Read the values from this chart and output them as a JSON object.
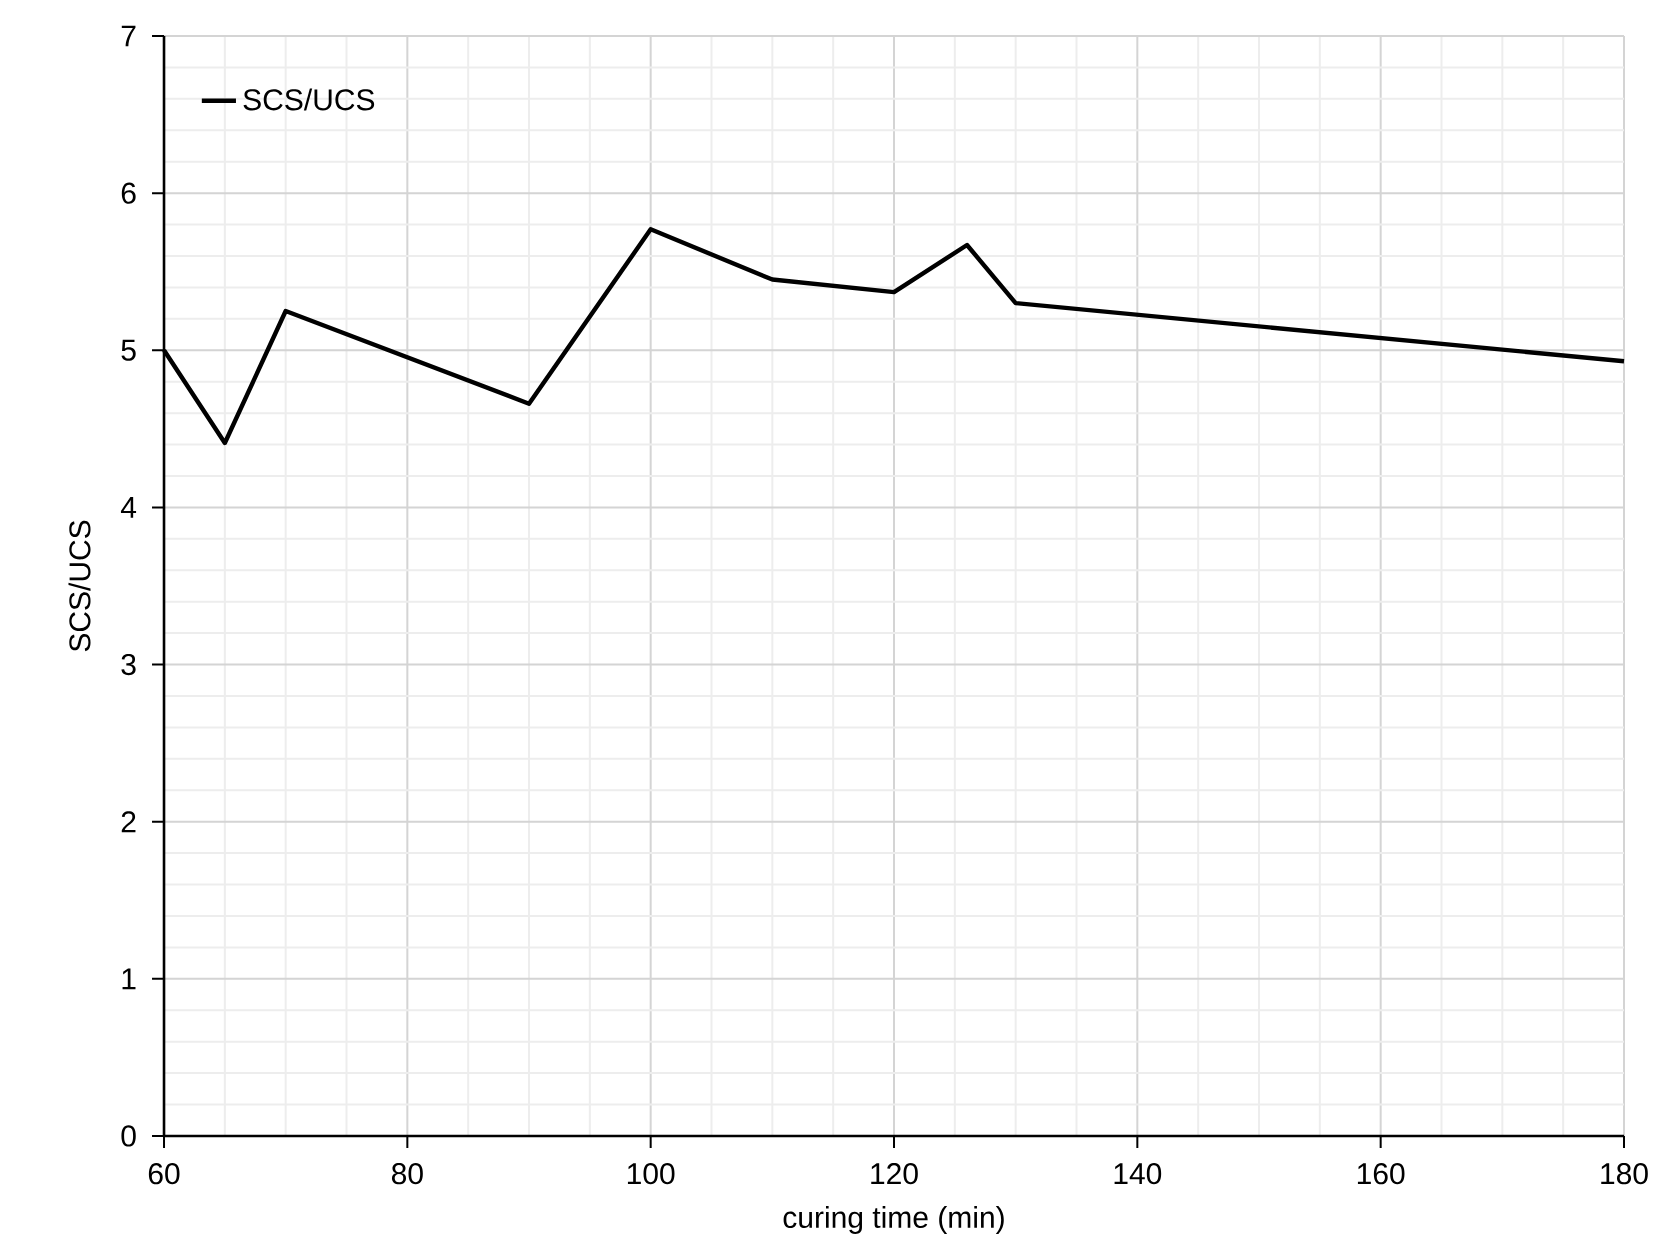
{
  "chart_data": {
    "type": "line",
    "xlabel": "curing time (min)",
    "ylabel": "SCS/UCS",
    "x": [
      60,
      65,
      70,
      90,
      100,
      110,
      120,
      126,
      130,
      180
    ],
    "series": [
      {
        "name": "SCS/UCS",
        "color": "#000000",
        "values": [
          5.0,
          4.41,
          5.25,
          4.66,
          5.77,
          5.45,
          5.37,
          5.67,
          5.3,
          4.93
        ]
      }
    ],
    "xlim": [
      60,
      180
    ],
    "xticks": [
      60,
      80,
      100,
      120,
      140,
      160,
      180
    ],
    "ylim": [
      0,
      7
    ],
    "yticks": [
      0,
      1,
      2,
      3,
      4,
      5,
      6,
      7
    ],
    "grid": true,
    "legend": "top left",
    "marker": "none",
    "line_style": "solid"
  }
}
